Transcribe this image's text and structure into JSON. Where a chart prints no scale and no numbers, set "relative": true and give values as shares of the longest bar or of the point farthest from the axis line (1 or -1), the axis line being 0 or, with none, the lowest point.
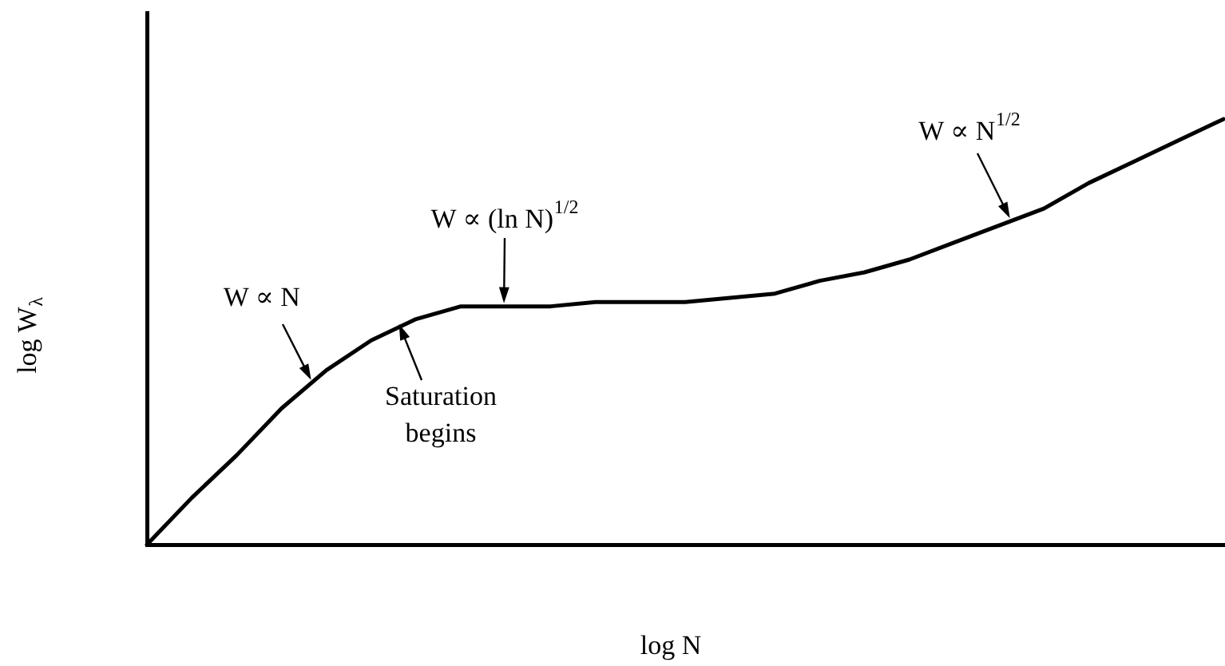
{
  "chart_data": {
    "type": "line",
    "xlabel": "log N",
    "ylabel": "log W$_{λ}$",
    "categories": [
      null,
      null,
      null,
      null,
      null,
      null,
      null,
      null,
      null,
      null,
      null,
      null,
      null,
      null,
      null,
      null,
      null,
      null,
      null,
      null,
      null,
      null,
      null,
      null,
      null
    ],
    "values": [
      0,
      0.11,
      0.21,
      0.32,
      0.41,
      0.48,
      0.53,
      0.56,
      0.56,
      0.56,
      0.57,
      0.57,
      0.57,
      0.58,
      0.59,
      0.62,
      0.64,
      0.67,
      0.71,
      0.75,
      0.79,
      0.85,
      0.9,
      0.95,
      1
    ],
    "color": "#000000",
    "relative": true,
    "tick_labels": false,
    "line_style": "solid",
    "annotations": [
      "W ∝ N",
      "Saturation begins",
      "W ∝ (ln N)$^{1/2}$",
      "W ∝ N$^{1/2}$"
    ]
  }
}
